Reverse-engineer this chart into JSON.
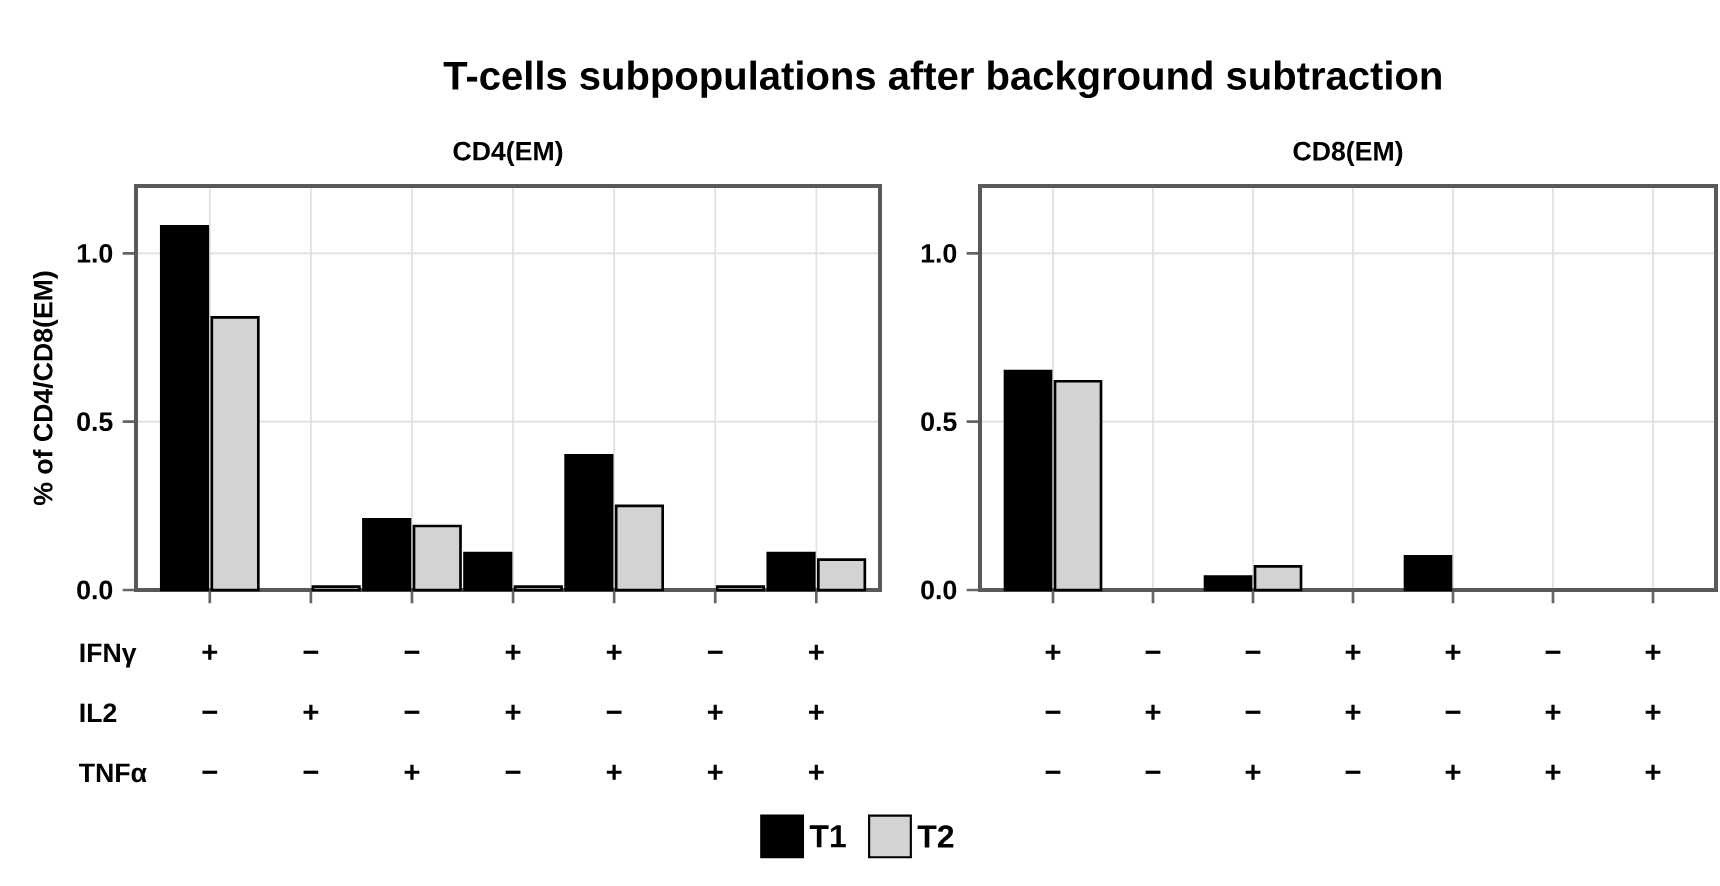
{
  "chart_data": [
    {
      "type": "bar",
      "title": "T-cells subpopulations after background subtraction",
      "subtitle": "CD4(EM)",
      "ylabel": "% of CD4/CD8(EM)",
      "categories": [
        "+ − −",
        "− + −",
        "− − +",
        "+ + −",
        "+ − +",
        "− + +",
        "+ + +"
      ],
      "series": [
        {
          "color": "#000000",
          "values": [
            1.08,
            null,
            0.21,
            0.11,
            0.4,
            null,
            0.11
          ]
        },
        {
          "color": "#d3d3d3",
          "values": [
            0.81,
            0.01,
            0.19,
            0.01,
            0.25,
            0.01,
            0.09
          ]
        }
      ],
      "ylim": [
        0,
        1.2
      ],
      "yticks": [
        {
          "value": 0,
          "label": "0.0"
        },
        {
          "value": 0.5,
          "label": "0.5"
        },
        {
          "value": 1,
          "label": "1.0"
        }
      ],
      "grid": true,
      "annotations": [
        "IFNγ",
        "IL2",
        "TNFα"
      ]
    },
    {
      "type": "bar",
      "subtitle": "CD8(EM)",
      "categories": [
        "+ − −",
        "− + −",
        "− − +",
        "+ + −",
        "+ − +",
        "− + +",
        "+ + +"
      ],
      "series": [
        {
          "name": "T1",
          "color": "#000000",
          "values": [
            0.65,
            null,
            0.04,
            null,
            0.1,
            null,
            null
          ]
        },
        {
          "name": "T2",
          "color": "#d3d3d3",
          "values": [
            0.62,
            null,
            0.07,
            null,
            null,
            null,
            null
          ]
        }
      ],
      "ylim": [
        0,
        1.2
      ],
      "yticks": [
        {
          "value": 0,
          "label": "0.0"
        },
        {
          "value": 0.5,
          "label": "0.5"
        },
        {
          "value": 1,
          "label": "1.0"
        }
      ],
      "grid": true,
      "legend": "bottom"
    }
  ]
}
